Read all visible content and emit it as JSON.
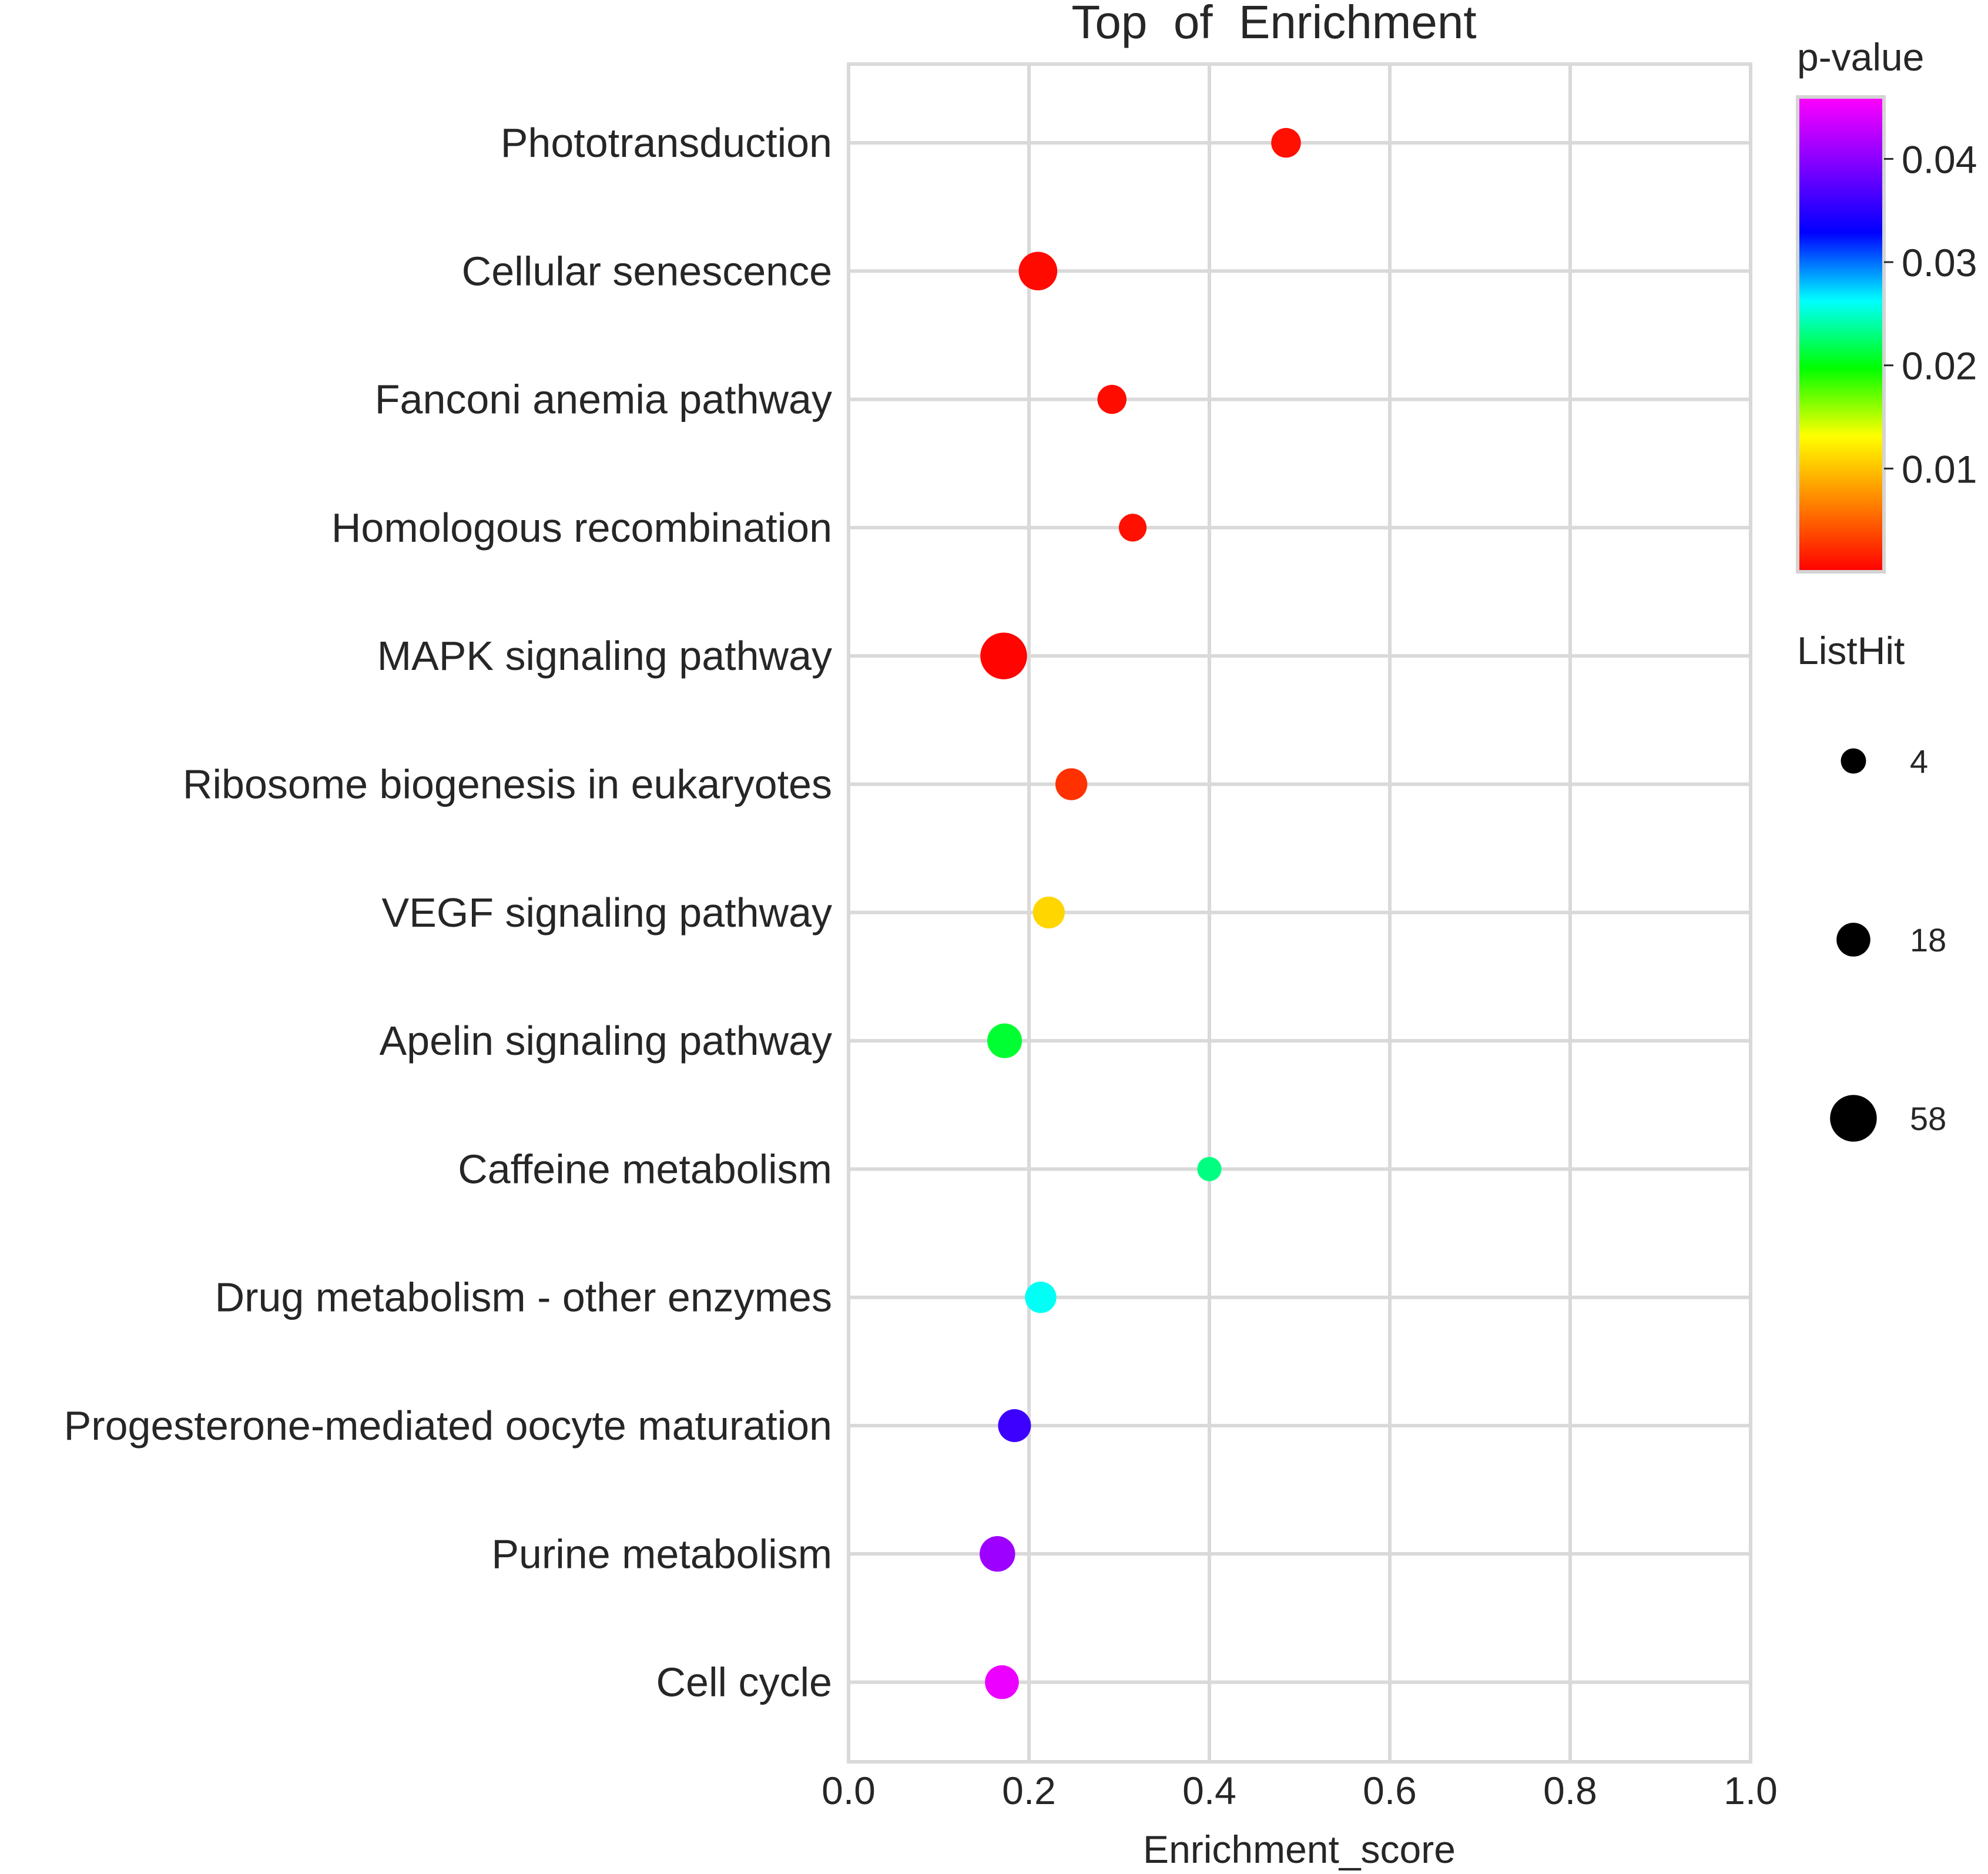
{
  "chart_data": {
    "type": "scatter",
    "title": "Top  of  Enrichment",
    "xlabel": "Enrichment_score",
    "ylabel": "",
    "xlim": [
      0.0,
      1.0
    ],
    "xticks": [
      "0.0",
      "0.2",
      "0.4",
      "0.6",
      "0.8",
      "1.0"
    ],
    "grid": true,
    "points": [
      {
        "term": "Phototransduction",
        "enrichment_score": 0.485,
        "p_value": 0.0008,
        "list_hit": 10
      },
      {
        "term": "Cellular senescence",
        "enrichment_score": 0.21,
        "p_value": 0.0005,
        "list_hit": 30
      },
      {
        "term": "Fanconi anemia pathway",
        "enrichment_score": 0.292,
        "p_value": 0.0006,
        "list_hit": 9
      },
      {
        "term": "Homologous recombination",
        "enrichment_score": 0.315,
        "p_value": 0.0008,
        "list_hit": 7
      },
      {
        "term": "MAPK signaling pathway",
        "enrichment_score": 0.172,
        "p_value": 0.0002,
        "list_hit": 58
      },
      {
        "term": "Ribosome biogenesis in eukaryotes",
        "enrichment_score": 0.247,
        "p_value": 0.0025,
        "list_hit": 14
      },
      {
        "term": "VEGF signaling pathway",
        "enrichment_score": 0.222,
        "p_value": 0.011,
        "list_hit": 14
      },
      {
        "term": "Apelin signaling pathway",
        "enrichment_score": 0.173,
        "p_value": 0.021,
        "list_hit": 20
      },
      {
        "term": "Caffeine metabolism",
        "enrichment_score": 0.4,
        "p_value": 0.023,
        "list_hit": 3
      },
      {
        "term": "Drug metabolism - other enzymes",
        "enrichment_score": 0.213,
        "p_value": 0.026,
        "list_hit": 13
      },
      {
        "term": "Progesterone-mediated oocyte maturation",
        "enrichment_score": 0.184,
        "p_value": 0.036,
        "list_hit": 16
      },
      {
        "term": "Purine metabolism",
        "enrichment_score": 0.165,
        "p_value": 0.041,
        "list_hit": 22
      },
      {
        "term": "Cell cycle",
        "enrichment_score": 0.17,
        "p_value": 0.045,
        "list_hit": 18
      }
    ],
    "color_legend": {
      "title": "p-value",
      "ticks": [
        {
          "label": "0.04",
          "value": 0.04
        },
        {
          "label": "0.03",
          "value": 0.03
        },
        {
          "label": "0.02",
          "value": 0.02
        },
        {
          "label": "0.01",
          "value": 0.01
        }
      ],
      "range": [
        0.0,
        0.046
      ],
      "colormap": [
        "#ff0000",
        "#ff8000",
        "#ffff00",
        "#00ff00",
        "#00ffff",
        "#0000ff",
        "#8000ff",
        "#ff00ff"
      ]
    },
    "size_legend": {
      "title": "ListHit",
      "entries": [
        {
          "label": "4",
          "value": 4
        },
        {
          "label": "18",
          "value": 18
        },
        {
          "label": "58",
          "value": 58
        }
      ]
    }
  }
}
